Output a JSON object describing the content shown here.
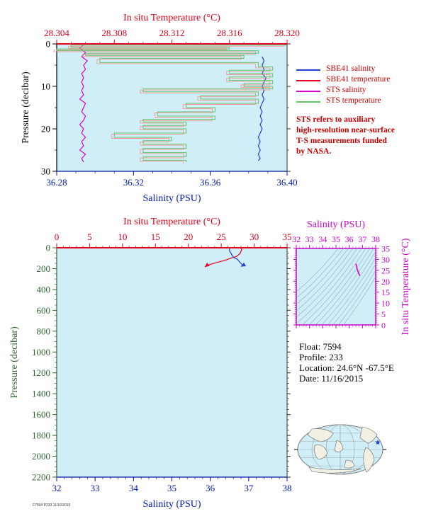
{
  "colors": {
    "plot_bg": "#cfeef8",
    "temp_axis": "#e8001c",
    "sal_axis": "#0018b0",
    "pres_axis": "#000000",
    "ts_axis": "#cc00cc",
    "sbe_sal": "#1f3fd6",
    "sbe_temp": "#e8001c",
    "sts_sal": "#d400d4",
    "sts_temp": "#66c266",
    "sts_temp_alt": "#ff8a8a",
    "note": "#cc0000"
  },
  "legend": {
    "items": [
      {
        "label": "SBE41 salinity",
        "color": "#1f3fd6"
      },
      {
        "label": "SBE41 temperature",
        "color": "#e8001c"
      },
      {
        "label": "STS salinity",
        "color": "#d400d4"
      },
      {
        "label": "STS temperature",
        "color": "#66c266"
      }
    ]
  },
  "note_lines": [
    "STS refers to auxiliary",
    "high-resolution near-surface",
    "T-S measurements funded",
    "by NASA."
  ],
  "info": {
    "float_line": "Float:  7594",
    "profile_line": "Profile:  233",
    "location_line": "Location:  24.6°N  -67.5°E",
    "date_line": "Date:  11/16/2015"
  },
  "footer_text": "F7594 P233 11/16/2015",
  "chart_data": [
    {
      "type": "line",
      "panel": "top",
      "xlabel_top": "In situ Temperature (°C)",
      "xlabel_bottom": "Salinity (PSU)",
      "ylabel": "Pressure (decibar)",
      "temperature_ticks": [
        28.304,
        28.308,
        28.312,
        28.316,
        28.32
      ],
      "temperature_tick_labels": [
        "28.304",
        "28.308",
        "28.312",
        "28.316",
        "28.320"
      ],
      "temperature_range": [
        28.304,
        28.32
      ],
      "salinity_ticks": [
        36.28,
        36.32,
        36.36,
        36.4
      ],
      "salinity_tick_labels": [
        "36.28",
        "36.32",
        "36.36",
        "36.40"
      ],
      "salinity_range": [
        36.28,
        36.4
      ],
      "pressure_ticks": [
        0,
        10,
        20,
        30
      ],
      "pressure_range": [
        0,
        30
      ],
      "series": [
        {
          "name": "STS salinity",
          "axis": "salinity",
          "color": "#d400d4",
          "points": [
            [
              36.294,
              0.2
            ],
            [
              36.292,
              1
            ],
            [
              36.295,
              2
            ],
            [
              36.293,
              3
            ],
            [
              36.296,
              4
            ],
            [
              36.294,
              5
            ],
            [
              36.295,
              6
            ],
            [
              36.293,
              7
            ],
            [
              36.294,
              8
            ],
            [
              36.293,
              9
            ],
            [
              36.294,
              10
            ],
            [
              36.293,
              11
            ],
            [
              36.294,
              12
            ],
            [
              36.292,
              13
            ],
            [
              36.295,
              14
            ],
            [
              36.294,
              15
            ],
            [
              36.293,
              16
            ],
            [
              36.295,
              17
            ],
            [
              36.294,
              18
            ],
            [
              36.292,
              19
            ],
            [
              36.294,
              20
            ],
            [
              36.293,
              21
            ],
            [
              36.295,
              22
            ],
            [
              36.293,
              23
            ],
            [
              36.294,
              24
            ],
            [
              36.292,
              25
            ],
            [
              36.295,
              26
            ],
            [
              36.293,
              27
            ],
            [
              36.294,
              27.8
            ]
          ]
        },
        {
          "name": "SBE41 salinity",
          "axis": "salinity",
          "color": "#1f3fd6",
          "points": [
            [
              36.387,
              3
            ],
            [
              36.388,
              4
            ],
            [
              36.387,
              5
            ],
            [
              36.388,
              6
            ],
            [
              36.387,
              7
            ],
            [
              36.389,
              8
            ],
            [
              36.388,
              9
            ],
            [
              36.387,
              10
            ],
            [
              36.388,
              11
            ],
            [
              36.387,
              12
            ],
            [
              36.388,
              13
            ],
            [
              36.387,
              14
            ],
            [
              36.386,
              15
            ],
            [
              36.387,
              16
            ],
            [
              36.386,
              17
            ],
            [
              36.387,
              18
            ],
            [
              36.386,
              19
            ],
            [
              36.387,
              20
            ],
            [
              36.386,
              21
            ],
            [
              36.385,
              22
            ],
            [
              36.386,
              23
            ],
            [
              36.385,
              24
            ],
            [
              36.386,
              25
            ],
            [
              36.385,
              26
            ],
            [
              36.386,
              27
            ],
            [
              36.385,
              27.5
            ]
          ]
        },
        {
          "name": "STS temperature",
          "axis": "temperature",
          "color": "#66c266",
          "points": [
            [
              28.32,
              0.3
            ],
            [
              28.305,
              0.8
            ],
            [
              28.316,
              1.2
            ],
            [
              28.304,
              1.6
            ],
            [
              28.318,
              2.2
            ],
            [
              28.306,
              2.7
            ],
            [
              28.317,
              3.4
            ],
            [
              28.307,
              4.4
            ],
            [
              28.318,
              5.4
            ],
            [
              28.319,
              6.2
            ],
            [
              28.316,
              7.0
            ],
            [
              28.319,
              7.8
            ],
            [
              28.316,
              8.6
            ],
            [
              28.319,
              9.4
            ],
            [
              28.317,
              10.0
            ],
            [
              28.319,
              10.6
            ],
            [
              28.31,
              11.3
            ],
            [
              28.318,
              12.2
            ],
            [
              28.314,
              13.0
            ],
            [
              28.318,
              14.0
            ],
            [
              28.313,
              15.0
            ],
            [
              28.315,
              16.0
            ],
            [
              28.311,
              17.0
            ],
            [
              28.315,
              17.8
            ],
            [
              28.31,
              18.4
            ],
            [
              28.313,
              19.2
            ],
            [
              28.31,
              20.0
            ],
            [
              28.313,
              21.0
            ],
            [
              28.308,
              22.0
            ],
            [
              28.312,
              22.8
            ],
            [
              28.31,
              23.6
            ],
            [
              28.313,
              24.6
            ],
            [
              28.31,
              25.6
            ],
            [
              28.313,
              26.6
            ],
            [
              28.31,
              27.4
            ],
            [
              28.313,
              27.9
            ]
          ]
        },
        {
          "name": "SBE41 temperature",
          "axis": "temperature",
          "color": "#e8001c",
          "points": [
            [
              28.304,
              0
            ],
            [
              28.32,
              0
            ]
          ]
        }
      ]
    },
    {
      "type": "line",
      "panel": "bottom",
      "xlabel_top": "In situ Temperature (°C)",
      "xlabel_bottom": "Salinity (PSU)",
      "ylabel": "Pressure (decibar)",
      "temperature_ticks": [
        0,
        5,
        10,
        15,
        20,
        25,
        30,
        35
      ],
      "temperature_range": [
        0,
        35
      ],
      "salinity_ticks": [
        32,
        33,
        34,
        35,
        36,
        37,
        38
      ],
      "salinity_range": [
        32,
        38
      ],
      "pressure_ticks": [
        0,
        200,
        400,
        600,
        800,
        1000,
        1200,
        1400,
        1600,
        1800,
        2000,
        2200
      ],
      "pressure_range": [
        0,
        2200
      ],
      "series": [
        {
          "name": "SBE41 temperature",
          "axis": "temperature",
          "color": "#e8001c",
          "points": [
            [
              35,
              0
            ],
            [
              29,
              0
            ],
            [
              28,
              5
            ],
            [
              28.1,
              20
            ],
            [
              27.9,
              50
            ],
            [
              27.4,
              80
            ],
            [
              26.5,
              100
            ],
            [
              25.6,
              120
            ],
            [
              24.4,
              140
            ],
            [
              23.3,
              160
            ],
            [
              22.7,
              175
            ],
            [
              22.5,
              185
            ]
          ]
        },
        {
          "name": "SBE41 salinity",
          "axis": "salinity",
          "color": "#1f3fd6",
          "points": [
            [
              36.5,
              5
            ],
            [
              36.5,
              30
            ],
            [
              36.55,
              60
            ],
            [
              36.6,
              90
            ],
            [
              36.7,
              110
            ],
            [
              36.75,
              130
            ],
            [
              36.8,
              150
            ],
            [
              36.85,
              170
            ],
            [
              36.8,
              180
            ]
          ]
        }
      ]
    },
    {
      "type": "scatter",
      "panel": "ts-diagram",
      "xlabel": "Salinity (PSU)",
      "ylabel": "In situ Temperature (°C)",
      "xticks": [
        32,
        33,
        34,
        35,
        36,
        37,
        38
      ],
      "yticks": [
        0,
        5,
        10,
        15,
        20,
        25,
        30,
        35
      ],
      "xlim": [
        32,
        38
      ],
      "ylim": [
        0,
        35
      ],
      "series": [
        {
          "name": "T-S curve",
          "color": "#d400d4",
          "points": [
            [
              36.5,
              28
            ],
            [
              36.55,
              27
            ],
            [
              36.6,
              25.5
            ],
            [
              36.7,
              24
            ],
            [
              36.8,
              22.5
            ]
          ]
        }
      ]
    },
    {
      "type": "map",
      "panel": "location-map",
      "marker": {
        "lat": 24.6,
        "lon": -67.5,
        "symbol": "star",
        "color": "#1f3fd6"
      }
    }
  ]
}
